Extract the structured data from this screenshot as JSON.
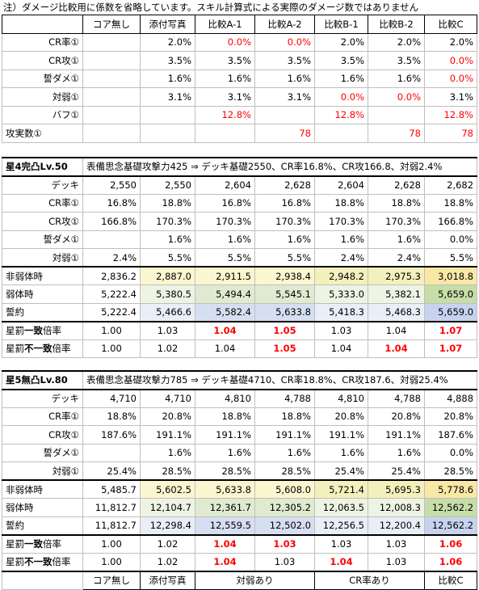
{
  "note": "注）ダメージ比較用に係数を省略しています。スキル計算式による実際のダメージ数ではありません",
  "table1": {
    "header": [
      "",
      "コア無し",
      "添付写真",
      "比較A-1",
      "比較A-2",
      "比較B-1",
      "比較B-2",
      "比較C"
    ],
    "rows": [
      {
        "label": "CR率①",
        "cells": [
          "",
          "2.0%",
          "0.0%",
          "0.0%",
          "2.0%",
          "2.0%",
          "2.0%"
        ],
        "red": [
          false,
          false,
          true,
          true,
          false,
          false,
          false
        ]
      },
      {
        "label": "CR攻①",
        "cells": [
          "",
          "3.5%",
          "3.5%",
          "3.5%",
          "3.5%",
          "3.5%",
          "0.0%"
        ],
        "red": [
          false,
          false,
          false,
          false,
          false,
          false,
          true
        ]
      },
      {
        "label": "誓ダメ①",
        "cells": [
          "",
          "1.6%",
          "1.6%",
          "1.6%",
          "1.6%",
          "1.6%",
          "0.0%"
        ],
        "red": [
          false,
          false,
          false,
          false,
          false,
          false,
          true
        ]
      },
      {
        "label": "対弱①",
        "cells": [
          "",
          "3.1%",
          "3.1%",
          "3.1%",
          "0.0%",
          "0.0%",
          "3.1%"
        ],
        "red": [
          false,
          false,
          false,
          false,
          true,
          true,
          false
        ]
      },
      {
        "label": "バフ①",
        "cells": [
          "",
          "",
          "12.8%",
          "",
          "12.8%",
          "",
          "12.8%"
        ],
        "red": [
          false,
          false,
          true,
          false,
          true,
          false,
          true
        ]
      },
      {
        "label": "攻実数①",
        "labelLeft": true,
        "cells": [
          "",
          "",
          "",
          "78",
          "",
          "78",
          "78"
        ],
        "red": [
          false,
          false,
          false,
          true,
          false,
          true,
          true
        ]
      }
    ]
  },
  "table2": {
    "title": "星4完凸Lv.50",
    "info": "表備思念基礎攻撃力425 ⇒ デッキ基礎2550、CR率16.8%、CR攻166.8、対弱2.4%",
    "rows": [
      {
        "label": "デッキ",
        "cells": [
          "2,550",
          "2,550",
          "2,604",
          "2,628",
          "2,604",
          "2,628",
          "2,682"
        ]
      },
      {
        "label": "CR率①",
        "cells": [
          "16.8%",
          "18.8%",
          "16.8%",
          "16.8%",
          "18.8%",
          "18.8%",
          "18.8%"
        ]
      },
      {
        "label": "CR攻①",
        "cells": [
          "166.8%",
          "170.3%",
          "170.3%",
          "170.3%",
          "170.3%",
          "170.3%",
          "166.8%"
        ]
      },
      {
        "label": "誓ダメ①",
        "cells": [
          "",
          "1.6%",
          "1.6%",
          "1.6%",
          "1.6%",
          "1.6%",
          "0.0%"
        ]
      },
      {
        "label": "対弱①",
        "cells": [
          "2.4%",
          "5.5%",
          "5.5%",
          "5.5%",
          "2.4%",
          "2.4%",
          "5.5%"
        ]
      }
    ],
    "calc": [
      {
        "label": "非弱体時",
        "cells": [
          "2,836.2",
          "2,887.0",
          "2,911.5",
          "2,938.4",
          "2,948.2",
          "2,975.3",
          "3,018.8"
        ],
        "shade": [
          "",
          "yl1",
          "yl1",
          "yl1",
          "yl2",
          "yl2",
          "yl3"
        ]
      },
      {
        "label": "弱体時",
        "cells": [
          "5,222.4",
          "5,380.5",
          "5,494.4",
          "5,545.1",
          "5,333.0",
          "5,382.1",
          "5,659.0"
        ],
        "shade": [
          "",
          "gr1",
          "gr2",
          "gr2",
          "gr1",
          "gr1",
          "gr3"
        ]
      },
      {
        "label": "誓約",
        "cells": [
          "5,222.4",
          "5,466.6",
          "5,582.4",
          "5,633.8",
          "5,418.3",
          "5,468.3",
          "5,659.0"
        ],
        "shade": [
          "",
          "bl1",
          "bl2",
          "bl2",
          "bl1",
          "bl1",
          "bl3"
        ]
      }
    ],
    "ratios": [
      {
        "label_a": "星罰",
        "label_b": "一致",
        "label_c": "倍率",
        "cells": [
          "1.00",
          "1.03",
          "1.04",
          "1.05",
          "1.03",
          "1.04",
          "1.07"
        ],
        "redb": [
          false,
          false,
          true,
          true,
          false,
          false,
          true
        ]
      },
      {
        "label_a": "星罰",
        "label_b": "不一致",
        "label_c": "倍率",
        "cells": [
          "1.00",
          "1.02",
          "1.04",
          "1.05",
          "1.04",
          "1.04",
          "1.07"
        ],
        "redb": [
          false,
          false,
          false,
          true,
          false,
          true,
          true
        ]
      }
    ]
  },
  "table3": {
    "title": "星5無凸Lv.80",
    "info": "表備思念基礎攻撃力785 ⇒ デッキ基礎4710、CR率18.8%、CR攻187.6、対弱25.4%",
    "rows": [
      {
        "label": "デッキ",
        "cells": [
          "4,710",
          "4,710",
          "4,810",
          "4,788",
          "4,810",
          "4,788",
          "4,888"
        ]
      },
      {
        "label": "CR率①",
        "cells": [
          "18.8%",
          "20.8%",
          "18.8%",
          "18.8%",
          "20.8%",
          "20.8%",
          "20.8%"
        ]
      },
      {
        "label": "CR攻①",
        "cells": [
          "187.6%",
          "191.1%",
          "191.1%",
          "191.1%",
          "191.1%",
          "191.1%",
          "187.6%"
        ]
      },
      {
        "label": "誓ダメ①",
        "cells": [
          "",
          "1.6%",
          "1.6%",
          "1.6%",
          "1.6%",
          "1.6%",
          "0.0%"
        ]
      },
      {
        "label": "対弱①",
        "cells": [
          "25.4%",
          "28.5%",
          "28.5%",
          "28.5%",
          "25.4%",
          "25.4%",
          "28.5%"
        ]
      }
    ],
    "calc": [
      {
        "label": "非弱体時",
        "cells": [
          "5,485.7",
          "5,602.5",
          "5,633.8",
          "5,608.0",
          "5,721.4",
          "5,695.3",
          "5,778.6"
        ],
        "shade": [
          "",
          "yl1",
          "yl1",
          "yl1",
          "yl2",
          "yl2",
          "yl3"
        ]
      },
      {
        "label": "弱体時",
        "cells": [
          "11,812.7",
          "12,104.7",
          "12,361.7",
          "12,305.2",
          "12,063.5",
          "12,008.3",
          "12,562.2"
        ],
        "shade": [
          "",
          "gr1",
          "gr2",
          "gr2",
          "gr1",
          "gr1",
          "gr3"
        ]
      },
      {
        "label": "誓約",
        "cells": [
          "11,812.7",
          "12,298.4",
          "12,559.5",
          "12,502.0",
          "12,256.5",
          "12,200.4",
          "12,562.2"
        ],
        "shade": [
          "",
          "bl1",
          "bl2",
          "bl2",
          "bl1",
          "bl1",
          "bl3"
        ]
      }
    ],
    "ratios": [
      {
        "label_a": "星罰",
        "label_b": "一致",
        "label_c": "倍率",
        "cells": [
          "1.00",
          "1.02",
          "1.04",
          "1.03",
          "1.03",
          "1.03",
          "1.06"
        ],
        "redb": [
          false,
          false,
          true,
          true,
          false,
          false,
          true
        ]
      },
      {
        "label_a": "星罰",
        "label_b": "不一致",
        "label_c": "倍率",
        "cells": [
          "1.00",
          "1.02",
          "1.04",
          "1.03",
          "1.04",
          "1.03",
          "1.06"
        ],
        "redb": [
          false,
          false,
          true,
          false,
          true,
          false,
          true
        ]
      }
    ],
    "footer": {
      "c1": "コア無し",
      "c2": "添付写真",
      "c3": "対弱あり",
      "c4": "CR率あり",
      "c5": "比較C"
    }
  }
}
